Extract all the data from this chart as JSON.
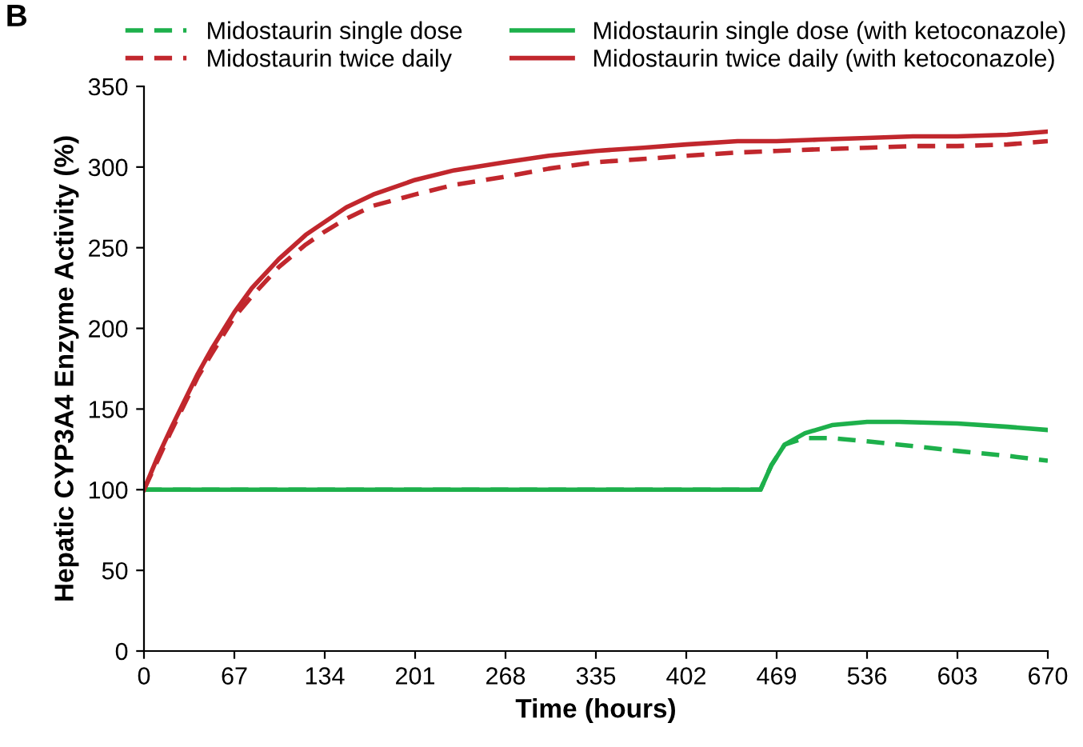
{
  "chart_data": {
    "type": "line",
    "xlabel": "Time (hours)",
    "ylabel": "Hepatic CYP3A4 Enzyme Activity (%)",
    "annotations": [
      "B"
    ],
    "xlim": [
      0,
      670
    ],
    "xticks": [
      0,
      67,
      134,
      201,
      268,
      335,
      402,
      469,
      536,
      603,
      670
    ],
    "ylim": [
      0,
      350
    ],
    "yticks": [
      0,
      50,
      100,
      150,
      200,
      250,
      300,
      350
    ],
    "grid": false,
    "legend": "top",
    "marker": "none",
    "series": [
      {
        "name": "Midostaurin single dose",
        "color": "#1db04b",
        "line_style": "dashed",
        "x": [
          0,
          100,
          200,
          300,
          400,
          457,
          465,
          475,
          490,
          510,
          536,
          570,
          603,
          640,
          670
        ],
        "values": [
          100,
          100,
          100,
          100,
          100,
          100,
          115,
          128,
          132,
          132,
          130,
          127,
          124,
          121,
          118
        ]
      },
      {
        "name": "Midostaurin twice daily",
        "color": "#c1272d",
        "line_style": "dashed",
        "x": [
          0,
          10,
          20,
          30,
          40,
          50,
          67,
          80,
          100,
          120,
          134,
          150,
          170,
          201,
          230,
          268,
          300,
          335,
          370,
          402,
          440,
          469,
          500,
          536,
          570,
          603,
          640,
          670
        ],
        "values": [
          100,
          118,
          136,
          153,
          170,
          184,
          207,
          220,
          238,
          252,
          260,
          268,
          276,
          283,
          289,
          294,
          299,
          303,
          305,
          307,
          309,
          310,
          311,
          312,
          313,
          313,
          314,
          316
        ]
      },
      {
        "name": "Midostaurin single dose (with ketoconazole)",
        "color": "#1db04b",
        "line_style": "solid",
        "x": [
          0,
          100,
          200,
          300,
          400,
          457,
          465,
          475,
          490,
          510,
          536,
          560,
          603,
          640,
          670
        ],
        "values": [
          100,
          100,
          100,
          100,
          100,
          100,
          115,
          128,
          135,
          140,
          142,
          142,
          141,
          139,
          137
        ]
      },
      {
        "name": "Midostaurin twice daily (with ketoconazole)",
        "color": "#c1272d",
        "line_style": "solid",
        "x": [
          0,
          10,
          20,
          30,
          40,
          50,
          67,
          80,
          100,
          120,
          134,
          150,
          170,
          201,
          230,
          268,
          300,
          335,
          370,
          402,
          440,
          469,
          500,
          536,
          570,
          603,
          640,
          670
        ],
        "values": [
          100,
          120,
          138,
          155,
          172,
          187,
          210,
          225,
          243,
          258,
          266,
          275,
          283,
          292,
          298,
          303,
          307,
          310,
          312,
          314,
          316,
          316,
          317,
          318,
          319,
          319,
          320,
          322
        ]
      }
    ]
  }
}
